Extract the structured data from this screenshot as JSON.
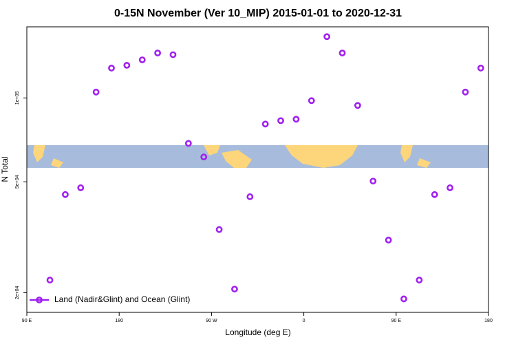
{
  "chart_data": {
    "type": "scatter",
    "title": "0-15N November (Ver 10_MIP)   2015-01-01 to 2020-12-31",
    "x_label": "Longitude (deg E)",
    "y_label": "N Total",
    "xlim": [
      90,
      540
    ],
    "xticks": [
      {
        "value": 90,
        "label": "90 E"
      },
      {
        "value": 180,
        "label": "180"
      },
      {
        "value": 270,
        "label": "90 W"
      },
      {
        "value": 360,
        "label": "0"
      },
      {
        "value": 450,
        "label": "90 E"
      },
      {
        "value": 540,
        "label": "180"
      }
    ],
    "ylim": [
      17000,
      180000
    ],
    "log_y": true,
    "yticks": [
      {
        "value": 20000,
        "label": "2e+04"
      },
      {
        "value": 50000,
        "label": "5e+04"
      },
      {
        "value": 100000,
        "label": "1e+05"
      }
    ],
    "legend": "bottom left",
    "series": [
      {
        "name": "Land (Nadir&Glint) and Ocean (Glint)",
        "color": "#a020f0",
        "x": [
          112.5,
          127.5,
          142.5,
          157.5,
          172.5,
          187.5,
          202.5,
          217.5,
          232.5,
          247.5,
          262.5,
          277.5,
          292.5,
          307.5,
          322.5,
          337.5,
          352.5,
          367.5,
          382.5,
          397.5,
          412.5,
          427.5,
          442.5,
          457.5,
          472.5,
          487.5,
          502.5,
          517.5,
          532.5
        ],
        "values": [
          22200,
          45000,
          47600,
          105000,
          128000,
          131000,
          137000,
          145000,
          143000,
          68700,
          61400,
          33700,
          20600,
          44200,
          80600,
          82900,
          83900,
          97800,
          166000,
          145000,
          94000,
          50300,
          30900,
          19000,
          22200,
          45000,
          47600,
          105000,
          128000
        ]
      }
    ]
  }
}
